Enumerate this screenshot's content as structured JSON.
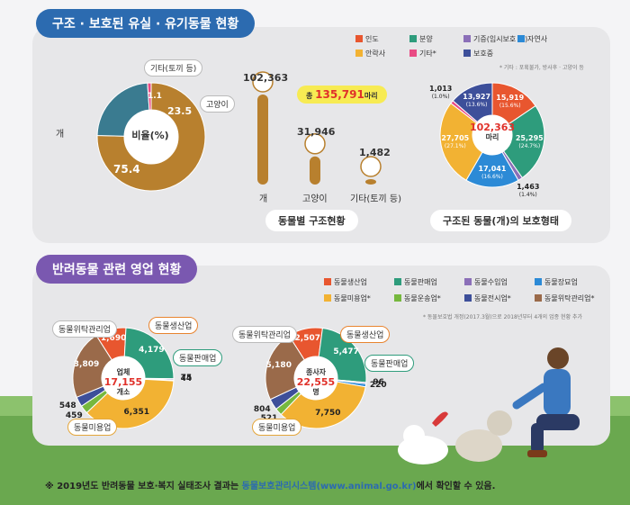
{
  "section1_title": "구조 · 보호된 유실 · 유기동물 현황",
  "section2_title": "반려동물 관련 영업 현황",
  "legend1": [
    {
      "label": "인도",
      "color": "#e8562f"
    },
    {
      "label": "분양",
      "color": "#2e9c7c"
    },
    {
      "label": "기증(임시보호 등)",
      "color": "#8b6fb8"
    },
    {
      "label": "자연사",
      "color": "#2c8ad6"
    },
    {
      "label": "안락사",
      "color": "#f2b233"
    },
    {
      "label": "기타*",
      "color": "#e94b84"
    },
    {
      "label": "보호중",
      "color": "#3d4f9a"
    }
  ],
  "legend1_note": "* 기타 : 포획불가, 방사후 · 고양이 등",
  "legend2": [
    {
      "label": "동물생산업",
      "color": "#e8562f"
    },
    {
      "label": "동물판매업",
      "color": "#2e9c7c"
    },
    {
      "label": "동물수입업",
      "color": "#8b6fb8"
    },
    {
      "label": "동물장묘업",
      "color": "#2c8ad6"
    },
    {
      "label": "동물미용업*",
      "color": "#f2b233"
    },
    {
      "label": "동물운송업*",
      "color": "#76b83e"
    },
    {
      "label": "동물전시업*",
      "color": "#3d4f9a"
    },
    {
      "label": "동물위탁관리업*",
      "color": "#9a6a4a"
    }
  ],
  "legend2_note": "* 동물보호법 개정(2017.3월)으로 2018년부터 4개의 업종 현황 추가",
  "chart_data": [
    {
      "type": "pie",
      "title": "비율(%)",
      "slices": [
        {
          "label": "개",
          "value": 75.4,
          "color": "#b8802e"
        },
        {
          "label": "고양이",
          "value": 23.5,
          "color": "#3a7b90"
        },
        {
          "label": "기타(토끼 등)",
          "value": 1.1,
          "color": "#e94b84"
        }
      ],
      "value_labels": [
        "75.4",
        "23.5",
        "1.1"
      ]
    },
    {
      "type": "bar",
      "title": "동물별 구조현황",
      "total_label": "총",
      "total_value": "135,791",
      "total_unit": "마리",
      "categories": [
        "개",
        "고양이",
        "기타(토끼 등)"
      ],
      "values": [
        102363,
        31946,
        1482
      ],
      "value_labels": [
        "102,363",
        "31,946",
        "1,482"
      ]
    },
    {
      "type": "pie",
      "title": "구조된 동물(개)의 보호형태",
      "center_value": "102,363",
      "center_unit": "마리",
      "slices": [
        {
          "label": "인도",
          "value": 15919,
          "value_label": "15,919",
          "pct": "(15.6%)",
          "color": "#e8562f"
        },
        {
          "label": "분양",
          "value": 25295,
          "value_label": "25,295",
          "pct": "(24.7%)",
          "color": "#2e9c7c"
        },
        {
          "label": "기증(임시보호 등)",
          "value": 1463,
          "value_label": "1,463",
          "pct": "(1.4%)",
          "color": "#8b6fb8"
        },
        {
          "label": "자연사",
          "value": 17041,
          "value_label": "17,041",
          "pct": "(16.6%)",
          "color": "#2c8ad6"
        },
        {
          "label": "안락사",
          "value": 27705,
          "value_label": "27,705",
          "pct": "(27.1%)",
          "color": "#f2b233"
        },
        {
          "label": "기타*",
          "value": 1013,
          "value_label": "1,013",
          "pct": "(1.0%)",
          "color": "#e94b84"
        },
        {
          "label": "보호중",
          "value": 13927,
          "value_label": "13,927",
          "pct": "(13.6%)",
          "color": "#3d4f9a"
        }
      ]
    },
    {
      "type": "pie",
      "title": "업체",
      "center_label": "업체",
      "center_value": "17,155",
      "center_unit": "개소",
      "slices": [
        {
          "label": "동물생산업",
          "value": 1690,
          "value_label": "1,690",
          "color": "#e8562f"
        },
        {
          "label": "동물판매업",
          "value": 4179,
          "value_label": "4,179",
          "color": "#2e9c7c"
        },
        {
          "label": "동물수입업",
          "value": 75,
          "value_label": "75",
          "color": "#8b6fb8"
        },
        {
          "label": "동물장묘업",
          "value": 44,
          "value_label": "44",
          "color": "#2c8ad6"
        },
        {
          "label": "동물미용업",
          "value": 6351,
          "value_label": "6,351",
          "color": "#f2b233"
        },
        {
          "label": "동물운송업",
          "value": 459,
          "value_label": "459",
          "color": "#76b83e"
        },
        {
          "label": "동물전시업",
          "value": 548,
          "value_label": "548",
          "color": "#3d4f9a"
        },
        {
          "label": "동물위탁관리업",
          "value": 3809,
          "value_label": "3,809",
          "color": "#9a6a4a"
        }
      ]
    },
    {
      "type": "pie",
      "title": "종사자",
      "center_label": "종사자",
      "center_value": "22,555",
      "center_unit": "명",
      "slices": [
        {
          "label": "동물생산업",
          "value": 2507,
          "value_label": "2,507",
          "color": "#e8562f"
        },
        {
          "label": "동물판매업",
          "value": 5477,
          "value_label": "5,477",
          "color": "#2e9c7c"
        },
        {
          "label": "동물수입업",
          "value": 96,
          "value_label": "96",
          "color": "#8b6fb8"
        },
        {
          "label": "동물장묘업",
          "value": 220,
          "value_label": "220",
          "color": "#2c8ad6"
        },
        {
          "label": "동물미용업",
          "value": 7750,
          "value_label": "7,750",
          "color": "#f2b233"
        },
        {
          "label": "동물운송업",
          "value": 521,
          "value_label": "521",
          "color": "#76b83e"
        },
        {
          "label": "동물전시업",
          "value": 804,
          "value_label": "804",
          "color": "#3d4f9a"
        },
        {
          "label": "동물위탁관리업",
          "value": 5180,
          "value_label": "5,180",
          "color": "#9a6a4a"
        }
      ]
    }
  ],
  "footer_prefix": "※ 2019년도 반려동물 보호·복지 실태조사 결과는",
  "footer_link": "동물보호관리시스템(www.animal.go.kr)",
  "footer_suffix": "에서 확인할 수 있음."
}
